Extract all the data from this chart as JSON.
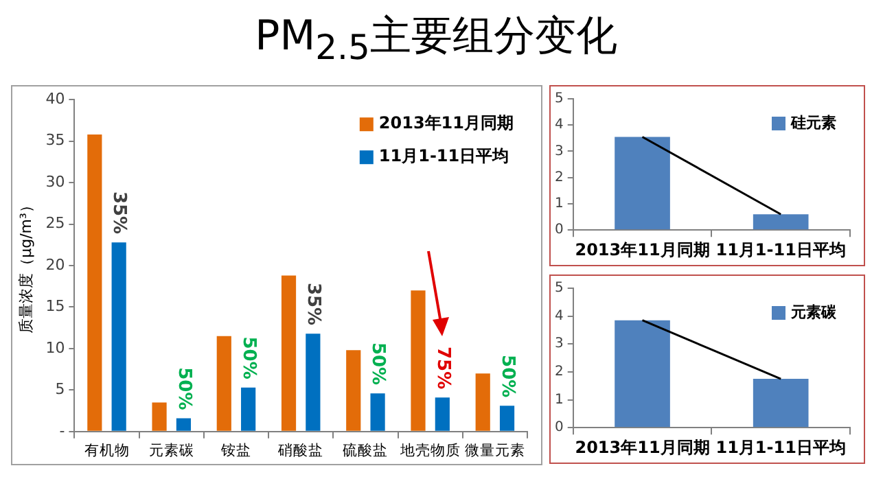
{
  "chart_data": [
    {
      "type": "bar",
      "title": "PM$_{2.5}$主要组分变化",
      "ylabel": "质量浓度（μg/m³）",
      "categories": [
        "有机物",
        "元素碳",
        "铵盐",
        "硝酸盐",
        "硫酸盐",
        "地壳物质",
        "微量元素"
      ],
      "series": [
        {
          "name": "2013年11月同期",
          "color": "#e36c09",
          "values": [
            35.8,
            3.5,
            11.5,
            18.8,
            9.8,
            17,
            7
          ]
        },
        {
          "name": "11月1-11日平均",
          "color": "#0070c0",
          "values": [
            22.8,
            1.6,
            5.3,
            11.8,
            4.6,
            4.1,
            3.1
          ]
        }
      ],
      "ylim": [
        0,
        40
      ],
      "yticks": [
        {
          "value": 0,
          "label": "-"
        },
        5,
        10,
        15,
        20,
        25,
        30,
        35,
        40
      ],
      "grid": false,
      "legend": "top right",
      "annotations": [
        "35%",
        "50%",
        "50%",
        "35%",
        "50%",
        "75%",
        "50%"
      ]
    },
    {
      "type": "bar",
      "categories": [
        "2013年11月同期",
        "11月1-11日平均"
      ],
      "series": [
        {
          "name": "硅元素",
          "color": "#4f81bd",
          "values": [
            3.55,
            0.6
          ]
        },
        {
          "type": "line",
          "color": "#000000",
          "values": [
            3.55,
            0.6
          ]
        }
      ],
      "ylim": [
        0,
        5
      ],
      "yticks": [
        0,
        1,
        2,
        3,
        4,
        5
      ],
      "grid": false,
      "legend": "top right",
      "marker": "none"
    },
    {
      "type": "bar",
      "categories": [
        "2013年11月同期",
        "11月1-11日平均"
      ],
      "series": [
        {
          "name": "元素碳",
          "color": "#4f81bd",
          "values": [
            3.85,
            1.75
          ]
        },
        {
          "type": "line",
          "color": "#000000",
          "values": [
            3.85,
            1.75
          ]
        }
      ],
      "ylim": [
        0,
        5
      ],
      "yticks": [
        0,
        1,
        2,
        3,
        4,
        5
      ],
      "grid": false,
      "legend": "top right",
      "marker": "none"
    }
  ]
}
